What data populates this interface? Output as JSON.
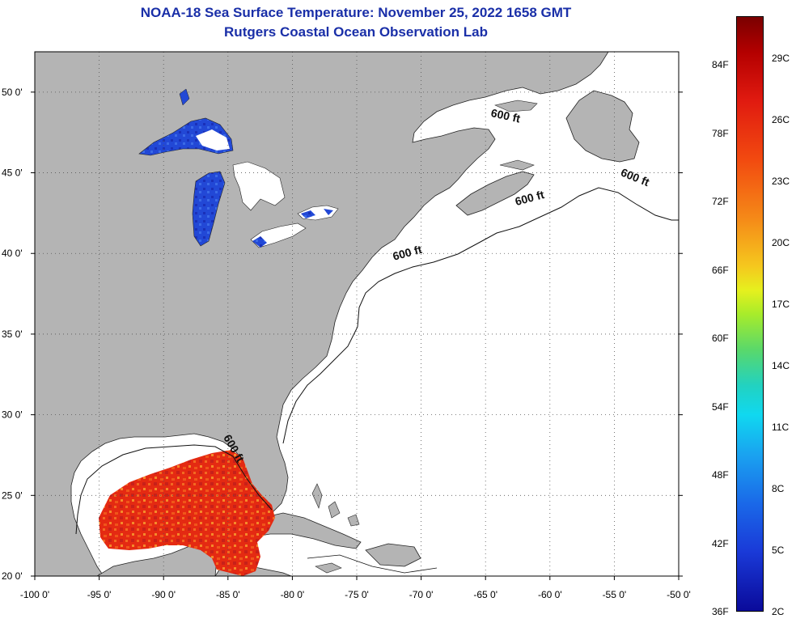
{
  "header": {
    "title": "NOAA-18 Sea Surface Temperature:  November 25, 2022 1658 GMT",
    "subtitle": "Rutgers Coastal Ocean Observation Lab"
  },
  "map": {
    "lon_range": [
      -100,
      -50
    ],
    "lat_range": [
      20,
      52.5
    ],
    "lon_ticks": [
      {
        "value": -100,
        "label": "-100 0'"
      },
      {
        "value": -95,
        "label": "-95 0'"
      },
      {
        "value": -90,
        "label": "-90 0'"
      },
      {
        "value": -85,
        "label": "-85 0'"
      },
      {
        "value": -80,
        "label": "-80 0'"
      },
      {
        "value": -75,
        "label": "-75 0'"
      },
      {
        "value": -70,
        "label": "-70 0'"
      },
      {
        "value": -65,
        "label": "-65 0'"
      },
      {
        "value": -60,
        "label": "-60 0'"
      },
      {
        "value": -55,
        "label": "-55 0'"
      },
      {
        "value": -50,
        "label": "-50 0'"
      }
    ],
    "lat_ticks": [
      {
        "value": 50,
        "label": "50 0'"
      },
      {
        "value": 45,
        "label": "45 0'"
      },
      {
        "value": 40,
        "label": "40 0'"
      },
      {
        "value": 35,
        "label": "35 0'"
      },
      {
        "value": 30,
        "label": "30 0'"
      },
      {
        "value": 25,
        "label": "25 0'"
      },
      {
        "value": 20,
        "label": "20 0'"
      }
    ],
    "grid": "dotted",
    "contour_labels": [
      {
        "text": "600 ft",
        "lon": -63.5,
        "lat": 48.3,
        "rotate": 12
      },
      {
        "text": "600 ft",
        "lon": -53.5,
        "lat": 44.5,
        "rotate": 22
      },
      {
        "text": "600 ft",
        "lon": -61.5,
        "lat": 43.2,
        "rotate": -15
      },
      {
        "text": "600 ft",
        "lon": -71,
        "lat": 39.8,
        "rotate": -15
      },
      {
        "text": "600 ft",
        "lon": -84.8,
        "lat": 27.8,
        "rotate": 60
      }
    ],
    "colors": {
      "land": "#b4b4b4",
      "ocean": "#ffffff",
      "gulf_sst": "#e82a10",
      "lake_sst": "#1f3fd0",
      "title": "#1a2fa8"
    }
  },
  "colorbar": {
    "fahrenheit_labels": [
      "84F",
      "78F",
      "72F",
      "66F",
      "60F",
      "54F",
      "48F",
      "42F",
      "36F"
    ],
    "celsius_labels": [
      "29C",
      "26C",
      "23C",
      "20C",
      "17C",
      "14C",
      "11C",
      "8C",
      "5C",
      "2C"
    ]
  }
}
